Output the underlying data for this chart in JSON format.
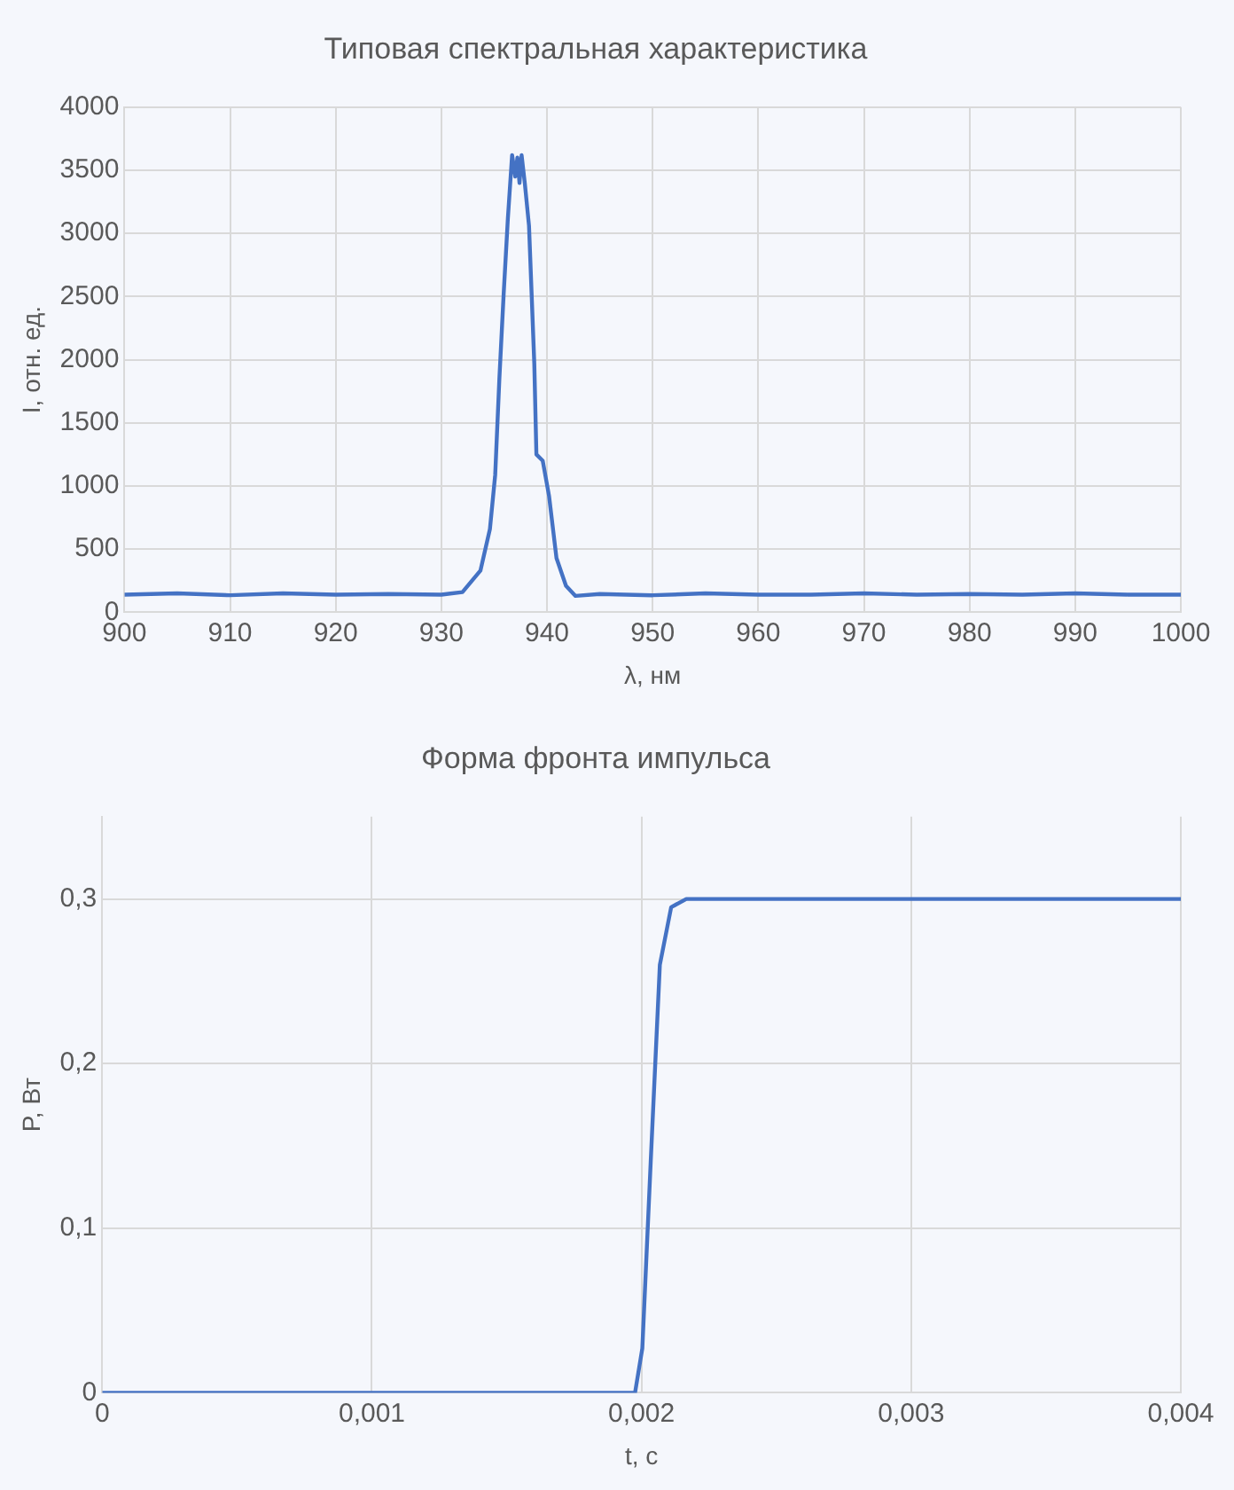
{
  "chart_data": [
    {
      "type": "line",
      "title": "Типовая спектральная характеристика",
      "xlabel": "λ, нм",
      "ylabel": "I, отн. ед.",
      "x": [
        900,
        905,
        910,
        915,
        920,
        925,
        930,
        932,
        933.7,
        934.6,
        935.1,
        935.5,
        935.9,
        936.3,
        936.7,
        937.0,
        937.2,
        937.4,
        937.6,
        937.9,
        938.3,
        938.8,
        939.0,
        939.6,
        940.2,
        940.9,
        941.8,
        942.7,
        945,
        950,
        955,
        960,
        965,
        970,
        975,
        980,
        985,
        990,
        995,
        1000
      ],
      "series": [
        {
          "color": "#4472c4",
          "values": [
            140,
            150,
            135,
            150,
            140,
            145,
            140,
            160,
            330,
            660,
            1090,
            1860,
            2520,
            3120,
            3620,
            3450,
            3600,
            3400,
            3620,
            3400,
            3060,
            1970,
            1250,
            1200,
            920,
            430,
            210,
            130,
            145,
            135,
            150,
            140,
            140,
            150,
            140,
            145,
            140,
            150,
            140,
            140
          ]
        }
      ],
      "xlim": [
        900,
        1000
      ],
      "xticks": [
        900,
        910,
        920,
        930,
        940,
        950,
        960,
        970,
        980,
        990,
        1000
      ],
      "ylim": [
        0,
        4000
      ],
      "yticks": [
        0,
        500,
        1000,
        1500,
        2000,
        2500,
        3000,
        3500,
        4000
      ],
      "grid": true,
      "legend": false,
      "marker": "none",
      "line_style": "solid"
    },
    {
      "type": "line",
      "title": "Форма фронта импульса",
      "xlabel": "t, с",
      "ylabel": "P, Вт",
      "x": [
        0,
        0.001976,
        0.002003,
        0.002034,
        0.002068,
        0.00211,
        0.002166,
        0.004
      ],
      "series": [
        {
          "color": "#4472c4",
          "values": [
            0,
            0,
            0.027,
            0.14,
            0.26,
            0.295,
            0.3,
            0.3
          ]
        }
      ],
      "xlim": [
        0,
        0.004
      ],
      "xticks": [
        0,
        {
          "value": 0.001,
          "label": "0,001"
        },
        {
          "value": 0.002,
          "label": "0,002"
        },
        {
          "value": 0.003,
          "label": "0,003"
        },
        {
          "value": 0.004,
          "label": "0,004"
        }
      ],
      "ylim": [
        0,
        0.35
      ],
      "yticks": [
        0,
        {
          "value": 0.1,
          "label": "0,1"
        },
        {
          "value": 0.2,
          "label": "0,2"
        },
        {
          "value": 0.3,
          "label": "0,3"
        }
      ],
      "grid": true,
      "legend": false,
      "marker": "none",
      "line_style": "solid"
    }
  ]
}
